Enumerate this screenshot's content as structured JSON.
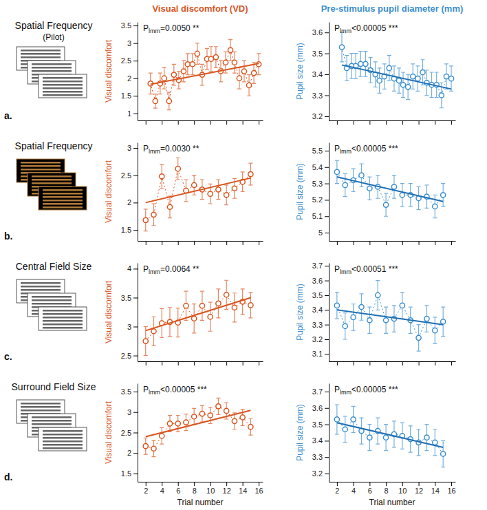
{
  "panels": {
    "column_titles": [
      "Visual discomfort (VD)",
      "Pre-stimulus pupil diameter (mm)"
    ],
    "rows": [
      {
        "title": "Spatial Frequency",
        "subtitle": "(Pilot)",
        "letter": "a."
      },
      {
        "title": "Spatial Frequency",
        "letter": "b."
      },
      {
        "title": "Central Field Size",
        "letter": "c."
      },
      {
        "title": "Surround Field Size",
        "letter": "d."
      }
    ]
  },
  "chart_data": [
    {
      "type": "line",
      "ylabel": "Visual discomfort",
      "annotation": {
        "symbol": "P",
        "subscript": "lmm",
        "text": "=0.0050 **"
      },
      "x": [
        2.6,
        3.2,
        3.8,
        4.3,
        4.9,
        5.5,
        6.1,
        6.7,
        7.2,
        7.8,
        8.4,
        9.0,
        9.6,
        10.1,
        10.7,
        11.3,
        11.9,
        12.5,
        13.0,
        13.6,
        14.2,
        14.8,
        15.4,
        16.0
      ],
      "xlim": [
        1,
        16.5
      ],
      "xticks": [
        2,
        4,
        6,
        8,
        10,
        12,
        14,
        16
      ],
      "tick_labels": "y",
      "ylim": [
        0.8,
        3.6
      ],
      "yticks": [
        1,
        1.5,
        2,
        2.5,
        3,
        3.5
      ],
      "series": [
        {
          "color": "#d9541e",
          "marker": "circle",
          "line_style": "dotted",
          "values": [
            1.85,
            1.35,
            1.85,
            2.0,
            1.35,
            2.1,
            1.95,
            2.2,
            2.4,
            2.4,
            2.7,
            2.1,
            2.55,
            2.55,
            2.6,
            2.2,
            2.45,
            2.8,
            2.45,
            2.0,
            2.2,
            1.8,
            2.15,
            2.4
          ],
          "errors": [
            0.3,
            0.2,
            0.3,
            0.3,
            0.25,
            0.3,
            0.25,
            0.3,
            0.3,
            0.3,
            0.3,
            0.3,
            0.3,
            0.35,
            0.3,
            0.3,
            0.3,
            0.3,
            0.3,
            0.3,
            0.3,
            0.3,
            0.3,
            0.3
          ]
        },
        {
          "color": "#d9541e",
          "line_style": "solid",
          "x": [
            2.6,
            16.0
          ],
          "values": [
            1.83,
            2.42
          ]
        }
      ]
    },
    {
      "type": "line",
      "ylabel": "Pupil size (mm)",
      "annotation": {
        "symbol": "P",
        "subscript": "lmm",
        "text": "<0.00005 ***"
      },
      "x": [
        2.6,
        3.2,
        3.8,
        4.3,
        4.9,
        5.5,
        6.1,
        6.7,
        7.2,
        7.8,
        8.4,
        9.0,
        9.6,
        10.1,
        10.7,
        11.3,
        11.9,
        12.5,
        13.0,
        13.6,
        14.2,
        14.8,
        15.4,
        16.0
      ],
      "xlim": [
        1,
        16.5
      ],
      "xticks": [
        2,
        4,
        6,
        8,
        10,
        12,
        14,
        16
      ],
      "tick_labels": "y",
      "ylim": [
        3.18,
        3.65
      ],
      "yticks": [
        3.2,
        3.3,
        3.4,
        3.5,
        3.6
      ],
      "series": [
        {
          "color": "#3a8fd0",
          "marker": "circle",
          "line_style": "dotted",
          "values": [
            3.53,
            3.43,
            3.44,
            3.44,
            3.45,
            3.45,
            3.42,
            3.4,
            3.37,
            3.39,
            3.43,
            3.38,
            3.37,
            3.35,
            3.34,
            3.39,
            3.38,
            3.41,
            3.36,
            3.35,
            3.35,
            3.3,
            3.39,
            3.38
          ],
          "errors": [
            0.07,
            0.06,
            0.06,
            0.06,
            0.06,
            0.06,
            0.06,
            0.06,
            0.06,
            0.06,
            0.06,
            0.06,
            0.06,
            0.06,
            0.06,
            0.06,
            0.06,
            0.06,
            0.06,
            0.06,
            0.06,
            0.06,
            0.06,
            0.06
          ]
        },
        {
          "color": "#1f6fb4",
          "line_style": "solid",
          "x": [
            2.6,
            16.0
          ],
          "values": [
            3.445,
            3.33
          ]
        }
      ]
    },
    {
      "type": "line",
      "ylabel": "Visual discomfort",
      "annotation": {
        "symbol": "P",
        "subscript": "lmm",
        "text": "=0.0030 **"
      },
      "x": [
        2,
        3,
        4,
        5,
        6,
        7,
        8,
        9,
        10,
        11,
        12,
        13,
        14,
        15
      ],
      "xlim": [
        1,
        16.5
      ],
      "xticks": [
        2,
        4,
        6,
        8,
        10,
        12,
        14,
        16
      ],
      "tick_labels": "y",
      "ylim": [
        1.3,
        3.1
      ],
      "yticks": [
        1.5,
        2,
        2.5,
        3
      ],
      "series": [
        {
          "color": "#d9541e",
          "marker": "circle",
          "line_style": "dotted",
          "values": [
            1.68,
            1.78,
            2.48,
            1.92,
            2.62,
            2.22,
            2.32,
            2.24,
            2.16,
            2.24,
            2.14,
            2.26,
            2.38,
            2.52
          ],
          "errors": [
            0.2,
            0.2,
            0.22,
            0.2,
            0.2,
            0.2,
            0.18,
            0.18,
            0.18,
            0.18,
            0.18,
            0.18,
            0.18,
            0.2
          ]
        },
        {
          "color": "#d9541e",
          "line_style": "solid",
          "x": [
            2,
            15
          ],
          "values": [
            2.0,
            2.45
          ]
        }
      ]
    },
    {
      "type": "line",
      "ylabel": "Pupil size (mm)",
      "annotation": {
        "symbol": "P",
        "subscript": "lmm",
        "text": "<0.00005 ***"
      },
      "x": [
        2,
        3,
        4,
        5,
        6,
        7,
        8,
        9,
        10,
        11,
        12,
        13,
        14,
        15
      ],
      "xlim": [
        1,
        16.5
      ],
      "xticks": [
        2,
        4,
        6,
        8,
        10,
        12,
        14,
        16
      ],
      "tick_labels": "y",
      "ylim": [
        4.95,
        5.55
      ],
      "yticks": [
        5,
        5.1,
        5.2,
        5.3,
        5.4,
        5.5
      ],
      "series": [
        {
          "color": "#3a8fd0",
          "marker": "circle",
          "line_style": "dotted",
          "values": [
            5.37,
            5.29,
            5.32,
            5.35,
            5.27,
            5.28,
            5.17,
            5.28,
            5.23,
            5.23,
            5.21,
            5.22,
            5.16,
            5.23
          ],
          "errors": [
            0.07,
            0.07,
            0.07,
            0.07,
            0.07,
            0.07,
            0.07,
            0.07,
            0.07,
            0.07,
            0.07,
            0.07,
            0.07,
            0.07
          ]
        },
        {
          "color": "#1f6fb4",
          "line_style": "solid",
          "x": [
            2,
            15
          ],
          "values": [
            5.34,
            5.19
          ]
        }
      ]
    },
    {
      "type": "line",
      "ylabel": "Visual discomfort",
      "annotation": {
        "symbol": "P",
        "subscript": "lmm",
        "text": "=0.0064 **"
      },
      "x": [
        2,
        3,
        4,
        5,
        6,
        7,
        8,
        9,
        10,
        11,
        12,
        13,
        14,
        15
      ],
      "xlim": [
        1,
        16.5
      ],
      "xticks": [
        2,
        4,
        6,
        8,
        10,
        12,
        14,
        16
      ],
      "tick_labels": "y",
      "ylim": [
        2.4,
        4.1
      ],
      "yticks": [
        2.5,
        3,
        3.5,
        4
      ],
      "series": [
        {
          "color": "#d9541e",
          "marker": "circle",
          "line_style": "dotted",
          "values": [
            2.75,
            2.92,
            3.06,
            3.08,
            3.07,
            3.36,
            3.14,
            3.36,
            3.17,
            3.4,
            3.55,
            3.33,
            3.43,
            3.37
          ],
          "errors": [
            0.25,
            0.25,
            0.25,
            0.25,
            0.25,
            0.25,
            0.25,
            0.25,
            0.25,
            0.25,
            0.25,
            0.25,
            0.22,
            0.22
          ]
        },
        {
          "color": "#d9541e",
          "line_style": "solid",
          "x": [
            2,
            15
          ],
          "values": [
            2.93,
            3.5
          ]
        }
      ]
    },
    {
      "type": "line",
      "ylabel": "Pupil size (mm)",
      "annotation": {
        "symbol": "P",
        "subscript": "lmm",
        "text": "<0.00051 ***"
      },
      "x": [
        2,
        3,
        4,
        5,
        6,
        7,
        8,
        9,
        10,
        11,
        12,
        13,
        14,
        15
      ],
      "xlim": [
        1,
        16.5
      ],
      "xticks": [
        2,
        4,
        6,
        8,
        10,
        12,
        14,
        16
      ],
      "tick_labels": "y",
      "ylim": [
        3.05,
        3.72
      ],
      "yticks": [
        3.1,
        3.2,
        3.3,
        3.4,
        3.5,
        3.6,
        3.7
      ],
      "series": [
        {
          "color": "#3a8fd0",
          "marker": "circle",
          "line_style": "dotted",
          "values": [
            3.43,
            3.29,
            3.35,
            3.42,
            3.33,
            3.5,
            3.33,
            3.34,
            3.43,
            3.33,
            3.21,
            3.34,
            3.26,
            3.32
          ],
          "errors": [
            0.09,
            0.09,
            0.09,
            0.09,
            0.09,
            0.1,
            0.09,
            0.09,
            0.09,
            0.09,
            0.09,
            0.09,
            0.09,
            0.1
          ]
        },
        {
          "color": "#1f6fb4",
          "line_style": "solid",
          "x": [
            2,
            15
          ],
          "values": [
            3.4,
            3.3
          ]
        }
      ]
    },
    {
      "type": "line",
      "ylabel": "Visual discomfort",
      "xlabel": "Trial number",
      "annotation": {
        "symbol": "P",
        "subscript": "lmm",
        "text": "<0.00005 ***"
      },
      "x": [
        2,
        3,
        4,
        5,
        6,
        7,
        8,
        9,
        10,
        11,
        12,
        13,
        14,
        15
      ],
      "xlim": [
        1,
        16.5
      ],
      "xticks": [
        2,
        4,
        6,
        8,
        10,
        12,
        14,
        16
      ],
      "ylim": [
        1.3,
        3.7
      ],
      "yticks": [
        1.5,
        2,
        2.5,
        3,
        3.5
      ],
      "series": [
        {
          "color": "#d9541e",
          "marker": "circle",
          "line_style": "dotted",
          "values": [
            2.17,
            2.11,
            2.42,
            2.72,
            2.72,
            2.75,
            2.89,
            2.96,
            2.92,
            3.14,
            3.03,
            2.78,
            2.87,
            2.64
          ],
          "errors": [
            0.2,
            0.2,
            0.2,
            0.2,
            0.2,
            0.2,
            0.2,
            0.2,
            0.2,
            0.2,
            0.2,
            0.2,
            0.2,
            0.2
          ]
        },
        {
          "color": "#d9541e",
          "line_style": "solid",
          "x": [
            2,
            15
          ],
          "values": [
            2.4,
            3.04
          ]
        }
      ]
    },
    {
      "type": "line",
      "ylabel": "Pupil size (mm)",
      "xlabel": "Trial number",
      "annotation": {
        "symbol": "P",
        "subscript": "lmm",
        "text": "<0.00005 ***"
      },
      "x": [
        2,
        3,
        4,
        5,
        6,
        7,
        8,
        9,
        10,
        11,
        12,
        13,
        14,
        15
      ],
      "xlim": [
        1,
        16.5
      ],
      "xticks": [
        2,
        4,
        6,
        8,
        10,
        12,
        14,
        16
      ],
      "ylim": [
        3.15,
        3.75
      ],
      "yticks": [
        3.2,
        3.3,
        3.4,
        3.5,
        3.6,
        3.7
      ],
      "series": [
        {
          "color": "#3a8fd0",
          "marker": "circle",
          "line_style": "dotted",
          "values": [
            3.53,
            3.47,
            3.53,
            3.46,
            3.42,
            3.46,
            3.42,
            3.44,
            3.43,
            3.41,
            3.39,
            3.42,
            3.39,
            3.32
          ],
          "errors": [
            0.09,
            0.08,
            0.08,
            0.08,
            0.08,
            0.08,
            0.08,
            0.08,
            0.08,
            0.08,
            0.08,
            0.08,
            0.08,
            0.08
          ]
        },
        {
          "color": "#1f6fb4",
          "line_style": "solid",
          "x": [
            2,
            15
          ],
          "values": [
            3.51,
            3.36
          ]
        }
      ]
    }
  ]
}
